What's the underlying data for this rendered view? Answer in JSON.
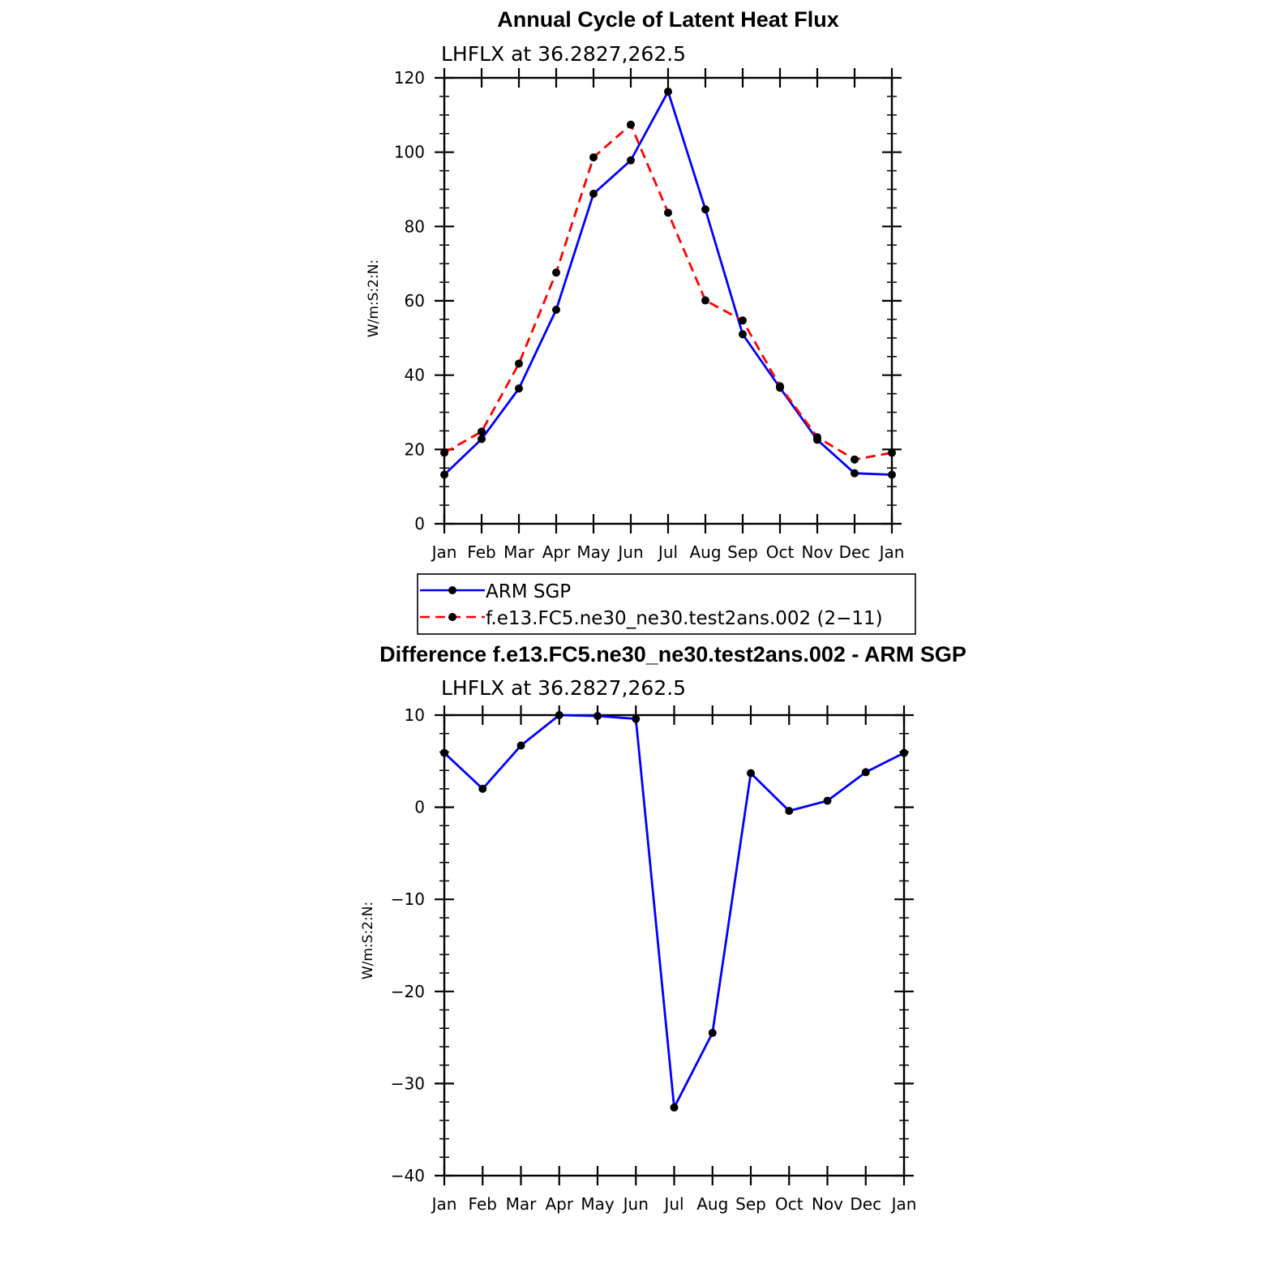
{
  "colors": {
    "obs": "#0000ff",
    "model": "#ff0000",
    "axis": "#000000",
    "marker": "#000000"
  },
  "chart_data": [
    {
      "type": "line",
      "title": "Annual Cycle of Latent Heat Flux",
      "subtitle": "LHFLX at 36.2827,262.5",
      "xlabel": "",
      "ylabel": "W/m:S:2:N:",
      "categories": [
        "Jan",
        "Feb",
        "Mar",
        "Apr",
        "May",
        "Jun",
        "Jul",
        "Aug",
        "Sep",
        "Oct",
        "Nov",
        "Dec",
        "Jan"
      ],
      "ylim": [
        0,
        120
      ],
      "yticks": [
        0,
        20,
        40,
        60,
        80,
        100,
        120
      ],
      "ytick_labels": [
        "0",
        "20",
        "40",
        "60",
        "80",
        "100",
        "120"
      ],
      "grid": false,
      "legend_position": "bottom",
      "series": [
        {
          "name": "ARM SGP",
          "style": "solid",
          "color": "#0000ff",
          "values": [
            13.2,
            22.8,
            36.4,
            57.6,
            88.8,
            97.8,
            116.3,
            84.6,
            51.0,
            36.6,
            22.6,
            13.6,
            13.2
          ]
        },
        {
          "name": "f.e13.FC5.ne30_ne30.test2ans.002 (2−11)",
          "style": "dashed",
          "color": "#ff0000",
          "values": [
            19.1,
            24.8,
            43.1,
            67.6,
            98.6,
            107.4,
            83.7,
            60.1,
            54.7,
            37.0,
            23.3,
            17.3,
            19.1
          ]
        }
      ]
    },
    {
      "type": "line",
      "title": "Difference f.e13.FC5.ne30_ne30.test2ans.002 - ARM SGP",
      "subtitle": "LHFLX at 36.2827,262.5",
      "xlabel": "",
      "ylabel": "W/m:S:2:N:",
      "categories": [
        "Jan",
        "Feb",
        "Mar",
        "Apr",
        "May",
        "Jun",
        "Jul",
        "Aug",
        "Sep",
        "Oct",
        "Nov",
        "Dec",
        "Jan"
      ],
      "ylim": [
        -40,
        10
      ],
      "yticks": [
        -40,
        -30,
        -20,
        -10,
        0,
        10
      ],
      "ytick_labels": [
        "−40",
        "−30",
        "−20",
        "−10",
        "0",
        "10"
      ],
      "grid": false,
      "series": [
        {
          "style": "solid",
          "color": "#0000ff",
          "values": [
            5.9,
            2.0,
            6.7,
            10.0,
            9.9,
            9.6,
            -32.6,
            -24.5,
            3.7,
            -0.4,
            0.7,
            3.8,
            5.9
          ]
        }
      ]
    }
  ]
}
